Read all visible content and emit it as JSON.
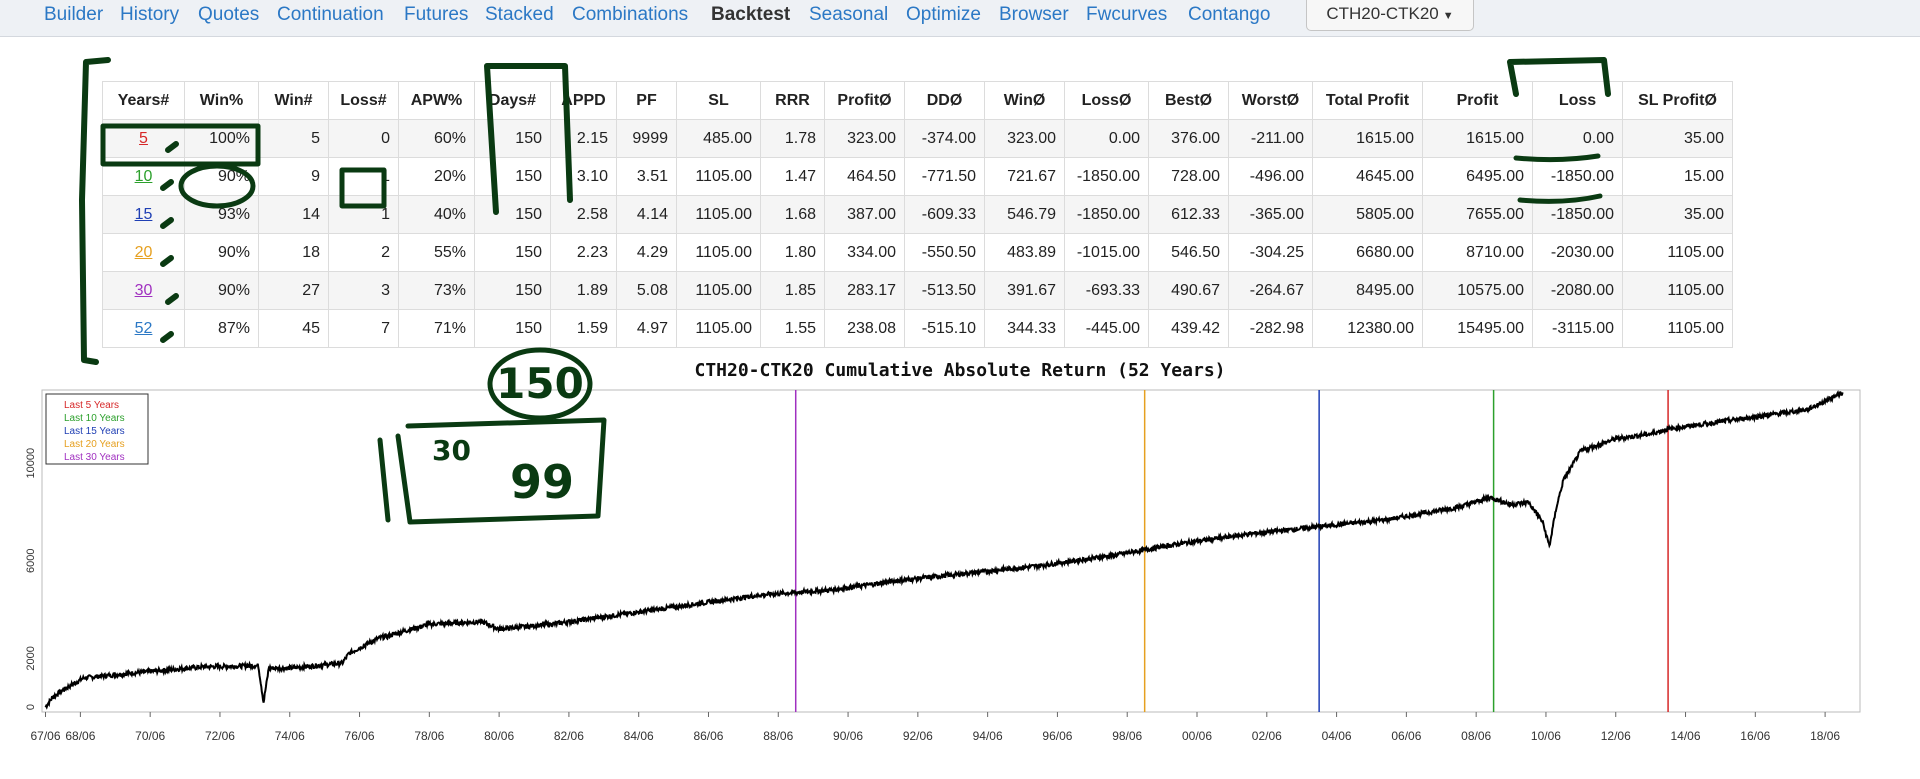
{
  "nav": {
    "items": [
      "Builder",
      "History",
      "Quotes",
      "Continuation",
      "Futures",
      "Stacked",
      "Combinations",
      "Backtest",
      "Seasonal",
      "Optimize",
      "Browser",
      "Fwcurves",
      "Contango"
    ],
    "active": "Backtest",
    "symbol": "CTH20-CTK20"
  },
  "table": {
    "headers": [
      "Years#",
      "Win%",
      "Win#",
      "Loss#",
      "APW%",
      "Days#",
      "APPD",
      "PF",
      "SL",
      "RRR",
      "ProfitØ",
      "DDØ",
      "WinØ",
      "LossØ",
      "BestØ",
      "WorstØ",
      "Total Profit",
      "Profit",
      "Loss",
      "SL ProfitØ"
    ],
    "rows": [
      {
        "years": "5",
        "color": "#d62728",
        "cells": [
          "100%",
          "5",
          "0",
          "60%",
          "150",
          "2.15",
          "9999",
          "485.00",
          "1.78",
          "323.00",
          "-374.00",
          "323.00",
          "0.00",
          "376.00",
          "-211.00",
          "1615.00",
          "1615.00",
          "0.00",
          "35.00"
        ]
      },
      {
        "years": "10",
        "color": "#2ca02c",
        "cells": [
          "90%",
          "9",
          "1",
          "20%",
          "150",
          "3.10",
          "3.51",
          "1105.00",
          "1.47",
          "464.50",
          "-771.50",
          "721.67",
          "-1850.00",
          "728.00",
          "-496.00",
          "4645.00",
          "6495.00",
          "-1850.00",
          "15.00"
        ]
      },
      {
        "years": "15",
        "color": "#1f3fb4",
        "cells": [
          "93%",
          "14",
          "1",
          "40%",
          "150",
          "2.58",
          "4.14",
          "1105.00",
          "1.68",
          "387.00",
          "-609.33",
          "546.79",
          "-1850.00",
          "612.33",
          "-365.00",
          "5805.00",
          "7655.00",
          "-1850.00",
          "35.00"
        ]
      },
      {
        "years": "20",
        "color": "#e6a020",
        "cells": [
          "90%",
          "18",
          "2",
          "55%",
          "150",
          "2.23",
          "4.29",
          "1105.00",
          "1.80",
          "334.00",
          "-550.50",
          "483.89",
          "-1015.00",
          "546.50",
          "-304.25",
          "6680.00",
          "8710.00",
          "-2030.00",
          "1105.00"
        ]
      },
      {
        "years": "30",
        "color": "#a030c0",
        "cells": [
          "90%",
          "27",
          "3",
          "73%",
          "150",
          "1.89",
          "5.08",
          "1105.00",
          "1.85",
          "283.17",
          "-513.50",
          "391.67",
          "-693.33",
          "490.67",
          "-264.67",
          "8495.00",
          "10575.00",
          "-2080.00",
          "1105.00"
        ]
      },
      {
        "years": "52",
        "color": "#2b78c5",
        "cells": [
          "87%",
          "45",
          "7",
          "71%",
          "150",
          "1.59",
          "4.97",
          "1105.00",
          "1.55",
          "238.08",
          "-515.10",
          "344.33",
          "-445.00",
          "439.42",
          "-282.98",
          "12380.00",
          "15495.00",
          "-3115.00",
          "1105.00"
        ]
      }
    ]
  },
  "chart_data": {
    "type": "line",
    "title": "CTH20-CTK20 Cumulative Absolute Return (52 Years)",
    "xlabel": "",
    "ylabel": "",
    "xlim": [
      1967.4,
      2019.5
    ],
    "ylim": [
      -200,
      13000
    ],
    "y_ticks": [
      0,
      2000,
      6000,
      10000
    ],
    "x_tick_labels": [
      "67/06",
      "68/06",
      "70/06",
      "72/06",
      "74/06",
      "76/06",
      "78/06",
      "80/06",
      "82/06",
      "84/06",
      "86/06",
      "88/06",
      "90/06",
      "92/06",
      "94/06",
      "96/06",
      "98/06",
      "00/06",
      "02/06",
      "04/06",
      "06/06",
      "08/06",
      "10/06",
      "12/06",
      "14/06",
      "16/06",
      "18/06"
    ],
    "x_tick_years": [
      1967.5,
      1968.5,
      1970.5,
      1972.5,
      1974.5,
      1976.5,
      1978.5,
      1980.5,
      1982.5,
      1984.5,
      1986.5,
      1988.5,
      1990.5,
      1992.5,
      1994.5,
      1996.5,
      1998.5,
      2000.5,
      2002.5,
      2004.5,
      2006.5,
      2008.5,
      2010.5,
      2012.5,
      2014.5,
      2016.5,
      2018.5
    ],
    "legend": {
      "placement": "top-left",
      "entries": [
        {
          "label": "Last 5 Years",
          "color": "#d62728"
        },
        {
          "label": "Last 10 Years",
          "color": "#2ca02c"
        },
        {
          "label": "Last 15 Years",
          "color": "#1f3fb4"
        },
        {
          "label": "Last 20 Years",
          "color": "#e6a020"
        },
        {
          "label": "Last 30 Years",
          "color": "#a030c0"
        }
      ]
    },
    "vertical_markers": [
      {
        "year": 1989.0,
        "color": "#a030c0"
      },
      {
        "year": 1999.0,
        "color": "#e6a020"
      },
      {
        "year": 2004.0,
        "color": "#1f3fb4"
      },
      {
        "year": 2009.0,
        "color": "#2ca02c"
      },
      {
        "year": 2014.0,
        "color": "#d62728"
      }
    ],
    "series": [
      {
        "x": [
          1967.5,
          1967.7,
          1968.0,
          1968.6,
          1970.0,
          1972.0,
          1973.6,
          1973.75,
          1973.9,
          1974.5,
          1976.0,
          1976.2,
          1977.0,
          1978.5,
          1980.0,
          1980.5,
          1982.0,
          1984.0,
          1986.0,
          1988.0,
          1990.0,
          1992.0,
          1994.0,
          1996.0,
          1998.0,
          2000.0,
          2002.0,
          2004.0,
          2006.0,
          2008.0,
          2008.9,
          2009.5,
          2010.0,
          2010.4,
          2010.6,
          2010.8,
          2011.0,
          2011.5,
          2012.5,
          2013.5,
          2014.0,
          2015.0,
          2016.0,
          2018.0,
          2019.0
        ],
        "y": [
          0,
          400,
          700,
          1200,
          1400,
          1650,
          1700,
          200,
          1600,
          1600,
          1800,
          2200,
          2800,
          3400,
          3500,
          3200,
          3400,
          3800,
          4200,
          4600,
          4800,
          5200,
          5500,
          5800,
          6200,
          6700,
          7100,
          7400,
          7700,
          8200,
          8600,
          8300,
          8400,
          7600,
          6600,
          8200,
          9300,
          10500,
          11000,
          11200,
          11400,
          11600,
          11800,
          12200,
          12900
        ]
      }
    ]
  },
  "annotations": {
    "circled_number": "150",
    "box_left": "30",
    "box_right": "99"
  }
}
